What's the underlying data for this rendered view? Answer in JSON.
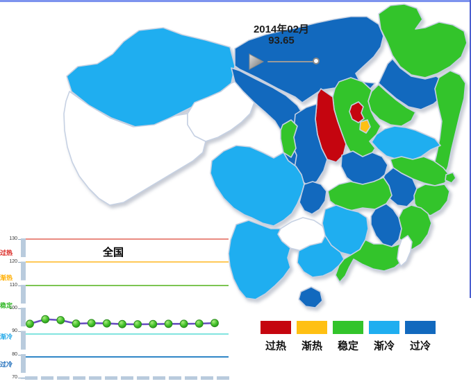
{
  "frame": {
    "top_border_color": "#7D93EE",
    "right_border_color": "#4A5ECF"
  },
  "time_control": {
    "date": "2014年02月",
    "value": "93.65"
  },
  "legend": {
    "items": [
      {
        "label": "过热",
        "color": "#C5050F"
      },
      {
        "label": "渐热",
        "color": "#FFC013"
      },
      {
        "label": "稳定",
        "color": "#33C42B"
      },
      {
        "label": "渐冷",
        "color": "#1FAEF0"
      },
      {
        "label": "过冷",
        "color": "#1269BE"
      }
    ]
  },
  "map": {
    "no_data_status": "无数据",
    "no_data_fill": "#FFFFFF",
    "border_color": "#C6D1E3"
  },
  "chart_data": [
    {
      "type": "heatmap",
      "subtype": "china-choropleth",
      "period": "2014年02月",
      "national_index": 93.65,
      "legend": [
        "过热",
        "渐热",
        "稳定",
        "渐冷",
        "过冷"
      ],
      "regions": [
        {
          "id": "xinjiang",
          "name": "新疆",
          "status": "渐冷"
        },
        {
          "id": "xizang",
          "name": "西藏",
          "status": "无数据"
        },
        {
          "id": "qinghai",
          "name": "青海",
          "status": "无数据"
        },
        {
          "id": "gansu",
          "name": "甘肃",
          "status": "过冷"
        },
        {
          "id": "neimenggu",
          "name": "内蒙古",
          "status": "过冷"
        },
        {
          "id": "ningxia",
          "name": "宁夏",
          "status": "稳定"
        },
        {
          "id": "shaanxi",
          "name": "陕西",
          "status": "过冷"
        },
        {
          "id": "shanxi",
          "name": "山西",
          "status": "过热"
        },
        {
          "id": "hebei",
          "name": "河北",
          "status": "稳定"
        },
        {
          "id": "beijing",
          "name": "北京",
          "status": "过热"
        },
        {
          "id": "tianjin",
          "name": "天津",
          "status": "渐热"
        },
        {
          "id": "heilongjiang",
          "name": "黑龙江",
          "status": "稳定"
        },
        {
          "id": "jilin",
          "name": "吉林",
          "status": "过冷"
        },
        {
          "id": "liaoning",
          "name": "辽宁",
          "status": "稳定"
        },
        {
          "id": "shandong",
          "name": "山东",
          "status": "渐冷"
        },
        {
          "id": "henan",
          "name": "河南",
          "status": "过冷"
        },
        {
          "id": "jiangsu",
          "name": "江苏",
          "status": "稳定"
        },
        {
          "id": "anhui",
          "name": "安徽",
          "status": "过冷"
        },
        {
          "id": "shanghai",
          "name": "上海",
          "status": "稳定"
        },
        {
          "id": "zhejiang",
          "name": "浙江",
          "status": "稳定"
        },
        {
          "id": "hubei",
          "name": "湖北",
          "status": "稳定"
        },
        {
          "id": "sichuan",
          "name": "四川",
          "status": "渐冷"
        },
        {
          "id": "chongqing",
          "name": "重庆",
          "status": "过冷"
        },
        {
          "id": "guizhou",
          "name": "贵州",
          "status": "无数据"
        },
        {
          "id": "hunan",
          "name": "湖南",
          "status": "渐冷"
        },
        {
          "id": "jiangxi",
          "name": "江西",
          "status": "过冷"
        },
        {
          "id": "fujian",
          "name": "福建",
          "status": "稳定"
        },
        {
          "id": "yunnan",
          "name": "云南",
          "status": "渐冷"
        },
        {
          "id": "guangxi",
          "name": "广西",
          "status": "渐冷"
        },
        {
          "id": "guangdong",
          "name": "广东",
          "status": "稳定"
        },
        {
          "id": "hainan",
          "name": "海南",
          "status": "过冷"
        },
        {
          "id": "taiwan",
          "name": "台湾",
          "status": "无数据"
        }
      ]
    },
    {
      "type": "line",
      "title": "全国",
      "ylim": [
        70,
        130
      ],
      "yticks": [
        130,
        120,
        110,
        100,
        90,
        80,
        70
      ],
      "zones": [
        {
          "label": "过热",
          "color": "#D9211C"
        },
        {
          "label": "渐热",
          "color": "#FFAE00"
        },
        {
          "label": "稳定",
          "color": "#35B82A"
        },
        {
          "label": "渐冷",
          "color": "#24A9E8"
        },
        {
          "label": "过冷",
          "color": "#1668B8"
        }
      ],
      "thresholds": [
        {
          "zone": "过热",
          "value": 130,
          "line_color": "#E98A80"
        },
        {
          "zone": "渐热",
          "value": 120,
          "line_color": "#FFC957"
        },
        {
          "zone": "稳定",
          "value": 110,
          "line_color": "#7CC552"
        },
        {
          "zone": "渐冷",
          "value": 89,
          "line_color": "#82E4DF"
        },
        {
          "zone": "过冷",
          "value": 79,
          "line_color": "#2F86C6"
        }
      ],
      "series": [
        {
          "name": "全国",
          "line_color": "#6A4FC0",
          "marker_color": "#33C42B",
          "values": [
            93.3,
            95.3,
            94.9,
            93.4,
            93.6,
            93.5,
            93.2,
            93.1,
            93.2,
            93.3,
            93.3,
            93.4,
            93.65
          ]
        }
      ]
    }
  ]
}
